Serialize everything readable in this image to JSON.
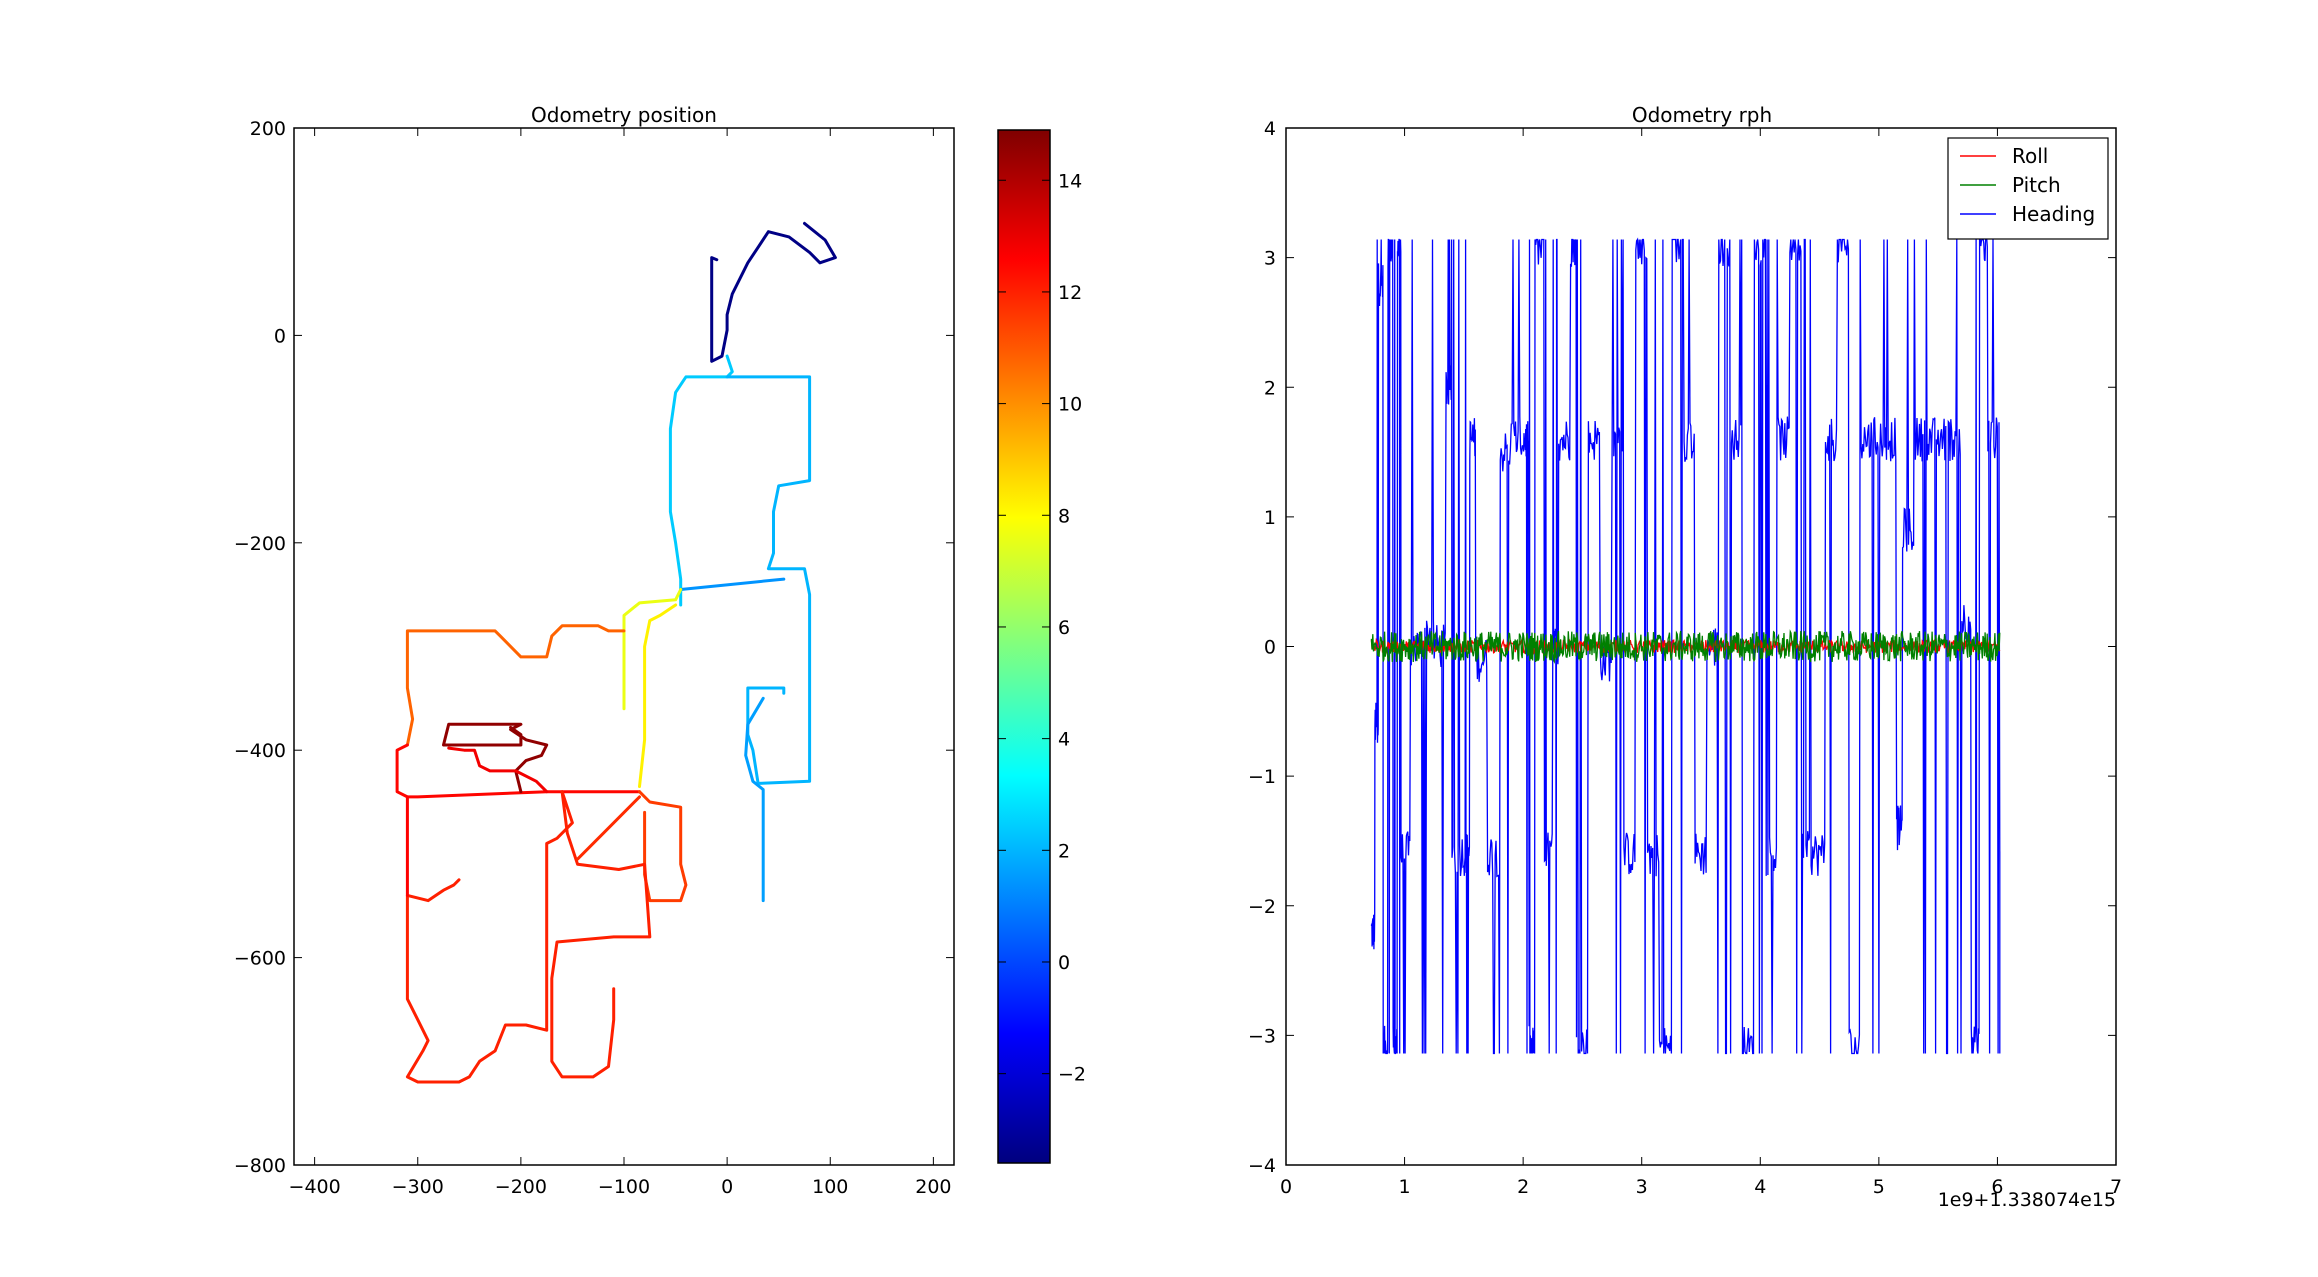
{
  "chart_data": [
    {
      "type": "scatter",
      "title": "Odometry position",
      "xlabel": "",
      "ylabel": "",
      "xlim": [
        -420,
        220
      ],
      "ylim": [
        -800,
        200
      ],
      "xticks": [
        -400,
        -300,
        -200,
        -100,
        0,
        100,
        200
      ],
      "yticks": [
        -800,
        -600,
        -400,
        -200,
        0,
        200
      ],
      "grid": false,
      "colormap": "jet",
      "colorbar": {
        "range": [
          -3.6,
          14.9
        ],
        "ticks": [
          -2,
          0,
          2,
          4,
          6,
          8,
          10,
          12,
          14
        ]
      },
      "segments": [
        {
          "c": -3.5,
          "pts": [
            [
              75,
              108
            ],
            [
              95,
              92
            ],
            [
              105,
              75
            ],
            [
              90,
              70
            ],
            [
              80,
              80
            ],
            [
              60,
              95
            ],
            [
              40,
              100
            ],
            [
              30,
              85
            ],
            [
              20,
              70
            ],
            [
              5,
              40
            ],
            [
              0,
              20
            ],
            [
              0,
              5
            ],
            [
              -5,
              -20
            ],
            [
              -15,
              -25
            ],
            [
              -15,
              75
            ],
            [
              -10,
              73
            ]
          ]
        },
        {
          "c": 2.4,
          "pts": [
            [
              0,
              -20
            ],
            [
              5,
              -35
            ],
            [
              0,
              -40
            ],
            [
              -40,
              -40
            ],
            [
              -50,
              -55
            ],
            [
              -55,
              -90
            ],
            [
              -55,
              -170
            ],
            [
              -50,
              -200
            ],
            [
              -45,
              -235
            ],
            [
              -45,
              -260
            ]
          ]
        },
        {
          "c": 2.0,
          "pts": [
            [
              0,
              -40
            ],
            [
              80,
              -40
            ],
            [
              80,
              -140
            ],
            [
              50,
              -145
            ],
            [
              45,
              -170
            ],
            [
              45,
              -210
            ],
            [
              40,
              -225
            ],
            [
              75,
              -225
            ],
            [
              80,
              -250
            ],
            [
              80,
              -430
            ],
            [
              30,
              -432
            ],
            [
              25,
              -400
            ],
            [
              20,
              -385
            ],
            [
              20,
              -340
            ],
            [
              25,
              -340
            ],
            [
              55,
              -340
            ],
            [
              55,
              -345
            ]
          ]
        },
        {
          "c": 1.6,
          "pts": [
            [
              35,
              -350
            ],
            [
              20,
              -375
            ],
            [
              18,
              -405
            ],
            [
              25,
              -430
            ],
            [
              35,
              -438
            ],
            [
              35,
              -545
            ]
          ]
        },
        {
          "c": 1.4,
          "pts": [
            [
              55,
              -235
            ],
            [
              -45,
              -245
            ]
          ]
        },
        {
          "c": 7.6,
          "pts": [
            [
              -45,
              -245
            ],
            [
              -50,
              -255
            ],
            [
              -85,
              -258
            ],
            [
              -100,
              -270
            ],
            [
              -100,
              -330
            ],
            [
              -100,
              -360
            ]
          ]
        },
        {
          "c": 8.2,
          "pts": [
            [
              -50,
              -260
            ],
            [
              -65,
              -270
            ],
            [
              -75,
              -275
            ],
            [
              -80,
              -300
            ],
            [
              -80,
              -340
            ],
            [
              -80,
              -390
            ],
            [
              -85,
              -435
            ]
          ]
        },
        {
          "c": 10.8,
          "pts": [
            [
              -100,
              -285
            ],
            [
              -115,
              -285
            ],
            [
              -125,
              -280
            ],
            [
              -160,
              -280
            ],
            [
              -170,
              -290
            ],
            [
              -175,
              -310
            ],
            [
              -200,
              -310
            ],
            [
              -220,
              -290
            ],
            [
              -225,
              -285
            ],
            [
              -280,
              -285
            ],
            [
              -310,
              -285
            ],
            [
              -310,
              -340
            ],
            [
              -305,
              -370
            ],
            [
              -310,
              -395
            ]
          ]
        },
        {
          "c": 12.5,
          "pts": [
            [
              -310,
              -395
            ],
            [
              -320,
              -400
            ],
            [
              -320,
              -440
            ],
            [
              -310,
              -445
            ],
            [
              -300,
              -445
            ],
            [
              -175,
              -440
            ],
            [
              -150,
              -440
            ],
            [
              -100,
              -440
            ],
            [
              -85,
              -440
            ]
          ]
        },
        {
          "c": 11.5,
          "pts": [
            [
              -85,
              -440
            ],
            [
              -75,
              -450
            ],
            [
              -45,
              -455
            ],
            [
              -45,
              -510
            ],
            [
              -40,
              -530
            ],
            [
              -45,
              -545
            ],
            [
              -75,
              -545
            ],
            [
              -80,
              -520
            ],
            [
              -80,
              -460
            ]
          ]
        },
        {
          "c": 12.0,
          "pts": [
            [
              -160,
              -440
            ],
            [
              -155,
              -480
            ],
            [
              -145,
              -510
            ],
            [
              -105,
              -515
            ],
            [
              -80,
              -510
            ],
            [
              -75,
              -580
            ],
            [
              -110,
              -580
            ],
            [
              -165,
              -585
            ],
            [
              -170,
              -620
            ],
            [
              -170,
              -650
            ],
            [
              -170,
              -700
            ],
            [
              -160,
              -715
            ],
            [
              -130,
              -715
            ],
            [
              -115,
              -705
            ],
            [
              -110,
              -660
            ],
            [
              -110,
              -630
            ]
          ]
        },
        {
          "c": 11.8,
          "pts": [
            [
              -85,
              -445
            ],
            [
              -120,
              -480
            ],
            [
              -145,
              -505
            ]
          ]
        },
        {
          "c": 12.0,
          "pts": [
            [
              -160,
              -440
            ],
            [
              -150,
              -470
            ],
            [
              -165,
              -485
            ],
            [
              -175,
              -490
            ],
            [
              -175,
              -540
            ],
            [
              -175,
              -575
            ],
            [
              -175,
              -620
            ],
            [
              -175,
              -670
            ],
            [
              -195,
              -665
            ],
            [
              -215,
              -665
            ],
            [
              -225,
              -690
            ],
            [
              -240,
              -700
            ],
            [
              -250,
              -715
            ],
            [
              -260,
              -720
            ],
            [
              -300,
              -720
            ],
            [
              -310,
              -715
            ],
            [
              -295,
              -690
            ],
            [
              -290,
              -680
            ],
            [
              -300,
              -660
            ],
            [
              -310,
              -640
            ],
            [
              -310,
              -560
            ],
            [
              -310,
              -540
            ],
            [
              -290,
              -545
            ],
            [
              -275,
              -535
            ],
            [
              -265,
              -530
            ],
            [
              -260,
              -525
            ]
          ]
        },
        {
          "c": 12.6,
          "pts": [
            [
              -310,
              -445
            ],
            [
              -310,
              -540
            ]
          ]
        },
        {
          "c": 14.6,
          "pts": [
            [
              -200,
              -440
            ],
            [
              -205,
              -420
            ],
            [
              -195,
              -410
            ],
            [
              -180,
              -405
            ],
            [
              -175,
              -395
            ],
            [
              -195,
              -390
            ],
            [
              -210,
              -380
            ],
            [
              -200,
              -375
            ],
            [
              -270,
              -375
            ],
            [
              -275,
              -395
            ],
            [
              -200,
              -395
            ],
            [
              -200,
              -385
            ],
            [
              -210,
              -378
            ]
          ]
        },
        {
          "c": 12.8,
          "pts": [
            [
              -175,
              -440
            ],
            [
              -185,
              -430
            ],
            [
              -205,
              -420
            ],
            [
              -230,
              -420
            ],
            [
              -240,
              -415
            ],
            [
              -245,
              -400
            ],
            [
              -255,
              -400
            ],
            [
              -270,
              -398
            ]
          ]
        }
      ]
    },
    {
      "type": "line",
      "title": "Odometry rph",
      "xlabel": "",
      "ylabel": "",
      "offset_label": "1e9+1.338074e15",
      "xlim": [
        0,
        7
      ],
      "ylim": [
        -4,
        4
      ],
      "xticks": [
        0,
        1,
        2,
        3,
        4,
        5,
        6,
        7
      ],
      "yticks": [
        -4,
        -3,
        -2,
        -1,
        0,
        1,
        2,
        3,
        4
      ],
      "grid": false,
      "legend": "top-right",
      "series": [
        {
          "name": "Roll",
          "color": "#ff0000",
          "x_range": [
            0.72,
            6.02
          ],
          "baseline": 0.0,
          "noise": 0.05
        },
        {
          "name": "Pitch",
          "color": "#008000",
          "x_range": [
            0.72,
            6.02
          ],
          "baseline": 0.0,
          "noise": 0.12
        },
        {
          "name": "Heading",
          "color": "#0000ff",
          "x_range": [
            0.72,
            6.02
          ],
          "wrap": [
            -3.14,
            3.14
          ],
          "levels": [
            [
              0.72,
              -2.2
            ],
            [
              0.75,
              -0.6
            ],
            [
              0.78,
              2.8
            ],
            [
              0.82,
              -3.1
            ],
            [
              0.86,
              3.1
            ],
            [
              0.9,
              -3.1
            ],
            [
              0.94,
              3.1
            ],
            [
              0.97,
              -1.6
            ],
            [
              1.05,
              0.0
            ],
            [
              1.15,
              0.1
            ],
            [
              1.25,
              0.0
            ],
            [
              1.35,
              2.0
            ],
            [
              1.4,
              -1.6
            ],
            [
              1.5,
              -1.6
            ],
            [
              1.55,
              1.6
            ],
            [
              1.6,
              -0.1
            ],
            [
              1.7,
              -1.6
            ],
            [
              1.8,
              1.5
            ],
            [
              1.9,
              1.6
            ],
            [
              2.0,
              1.6
            ],
            [
              2.05,
              -3.1
            ],
            [
              2.1,
              3.1
            ],
            [
              2.18,
              -1.6
            ],
            [
              2.25,
              0.0
            ],
            [
              2.3,
              1.6
            ],
            [
              2.4,
              3.1
            ],
            [
              2.45,
              -3.1
            ],
            [
              2.55,
              1.6
            ],
            [
              2.65,
              -0.1
            ],
            [
              2.75,
              1.6
            ],
            [
              2.85,
              -1.6
            ],
            [
              2.95,
              3.1
            ],
            [
              3.05,
              -1.6
            ],
            [
              3.15,
              -3.1
            ],
            [
              3.25,
              3.1
            ],
            [
              3.35,
              1.6
            ],
            [
              3.45,
              -1.6
            ],
            [
              3.55,
              0.0
            ],
            [
              3.65,
              3.1
            ],
            [
              3.75,
              1.6
            ],
            [
              3.85,
              -3.1
            ],
            [
              3.95,
              3.1
            ],
            [
              4.05,
              -1.6
            ],
            [
              4.15,
              1.6
            ],
            [
              4.25,
              3.1
            ],
            [
              4.35,
              -1.6
            ],
            [
              4.45,
              -1.6
            ],
            [
              4.55,
              1.6
            ],
            [
              4.65,
              3.1
            ],
            [
              4.75,
              -3.1
            ],
            [
              4.85,
              1.6
            ],
            [
              4.95,
              1.6
            ],
            [
              5.05,
              1.6
            ],
            [
              5.15,
              -1.4
            ],
            [
              5.2,
              0.9
            ],
            [
              5.3,
              1.6
            ],
            [
              5.4,
              1.6
            ],
            [
              5.5,
              1.6
            ],
            [
              5.6,
              1.6
            ],
            [
              5.7,
              0.2
            ],
            [
              5.78,
              -3.1
            ],
            [
              5.85,
              3.1
            ],
            [
              5.92,
              1.6
            ],
            [
              6.02,
              -1.7
            ]
          ]
        }
      ]
    }
  ]
}
